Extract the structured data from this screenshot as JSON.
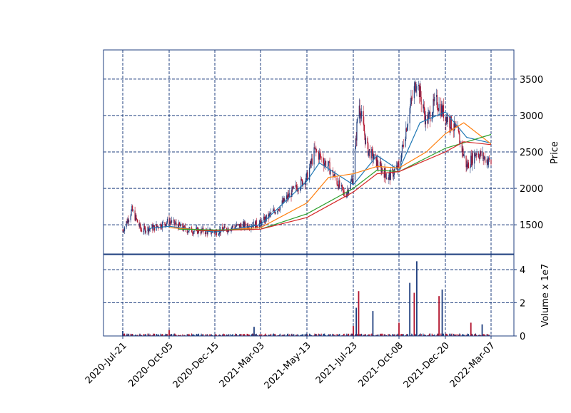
{
  "chart_data": {
    "type": "candlestick",
    "x_dates": [
      "2020-Jul-21",
      "2020-Oct-05",
      "2020-Dec-15",
      "2021-Mar-03",
      "2021-May-13",
      "2021-Jul-23",
      "2021-Oct-08",
      "2021-Dec-20",
      "2022-Mar-07"
    ],
    "x_tick_labels": [
      "2020-Jul-21",
      "2020-Oct-05",
      "2020-Dec-15",
      "2021-Mar-03",
      "2021-May-13",
      "2021-Jul-23",
      "2021-Oct-08",
      "2021-Dec-20",
      "2022-Mar-07"
    ],
    "price_panel": {
      "ylabel": "Price",
      "yticks": [
        1500,
        2000,
        2500,
        3000,
        3500
      ],
      "ylim": [
        1100,
        3900
      ],
      "grid": true,
      "candles_summary": [
        {
          "date": "2020-Jul-21",
          "price": 1420
        },
        {
          "date": "2020-Aug-05",
          "price": 1700
        },
        {
          "date": "2020-Aug-20",
          "price": 1430
        },
        {
          "date": "2020-Sep-10",
          "price": 1460
        },
        {
          "date": "2020-Oct-05",
          "price": 1550
        },
        {
          "date": "2020-Nov-01",
          "price": 1430
        },
        {
          "date": "2020-Dec-15",
          "price": 1400
        },
        {
          "date": "2021-Jan-20",
          "price": 1480
        },
        {
          "date": "2021-Feb-15",
          "price": 1500
        },
        {
          "date": "2021-Mar-03",
          "price": 1520
        },
        {
          "date": "2021-Apr-01",
          "price": 1750
        },
        {
          "date": "2021-Apr-20",
          "price": 1950
        },
        {
          "date": "2021-May-13",
          "price": 2150
        },
        {
          "date": "2021-May-25",
          "price": 2520
        },
        {
          "date": "2021-Jun-15",
          "price": 2300
        },
        {
          "date": "2021-Jul-10",
          "price": 1900
        },
        {
          "date": "2021-Jul-23",
          "price": 2150
        },
        {
          "date": "2021-Aug-01",
          "price": 3200
        },
        {
          "date": "2021-Aug-15",
          "price": 2550
        },
        {
          "date": "2021-Sep-01",
          "price": 2350
        },
        {
          "date": "2021-Sep-20",
          "price": 2150
        },
        {
          "date": "2021-Oct-08",
          "price": 2300
        },
        {
          "date": "2021-Oct-25",
          "price": 3100
        },
        {
          "date": "2021-Nov-05",
          "price": 3500
        },
        {
          "date": "2021-Nov-20",
          "price": 2900
        },
        {
          "date": "2021-Dec-05",
          "price": 3200
        },
        {
          "date": "2021-Dec-20",
          "price": 3000
        },
        {
          "date": "2022-Jan-10",
          "price": 2750
        },
        {
          "date": "2022-Jan-25",
          "price": 2300
        },
        {
          "date": "2022-Feb-10",
          "price": 2500
        },
        {
          "date": "2022-Mar-07",
          "price": 2350
        }
      ],
      "moving_averages": [
        {
          "color": "#1f77b4",
          "points": [
            [
              "2020-Sep-01",
              1450
            ],
            [
              "2020-Oct-05",
              1480
            ],
            [
              "2020-Dec-15",
              1400
            ],
            [
              "2021-Mar-03",
              1500
            ],
            [
              "2021-May-13",
              2100
            ],
            [
              "2021-Jun-01",
              2350
            ],
            [
              "2021-Jul-23",
              2050
            ],
            [
              "2021-Sep-01",
              2450
            ],
            [
              "2021-Oct-08",
              2250
            ],
            [
              "2021-Nov-10",
              2900
            ],
            [
              "2021-Dec-20",
              3050
            ],
            [
              "2022-Jan-25",
              2700
            ],
            [
              "2022-Mar-07",
              2620
            ]
          ]
        },
        {
          "color": "#ff7f0e",
          "points": [
            [
              "2020-Oct-05",
              1460
            ],
            [
              "2020-Dec-15",
              1420
            ],
            [
              "2021-Mar-03",
              1460
            ],
            [
              "2021-May-13",
              1800
            ],
            [
              "2021-Jun-15",
              2150
            ],
            [
              "2021-Jul-23",
              2200
            ],
            [
              "2021-Sep-01",
              2300
            ],
            [
              "2021-Oct-08",
              2280
            ],
            [
              "2021-Nov-20",
              2500
            ],
            [
              "2021-Dec-20",
              2750
            ],
            [
              "2022-Jan-20",
              2900
            ],
            [
              "2022-Mar-07",
              2610
            ]
          ]
        },
        {
          "color": "#2ca02c",
          "points": [
            [
              "2020-Oct-20",
              1440
            ],
            [
              "2020-Dec-15",
              1430
            ],
            [
              "2021-Mar-03",
              1440
            ],
            [
              "2021-May-13",
              1650
            ],
            [
              "2021-Jul-23",
              2000
            ],
            [
              "2021-Sep-01",
              2250
            ],
            [
              "2021-Oct-08",
              2230
            ],
            [
              "2021-Dec-20",
              2550
            ],
            [
              "2022-Mar-07",
              2740
            ]
          ]
        },
        {
          "color": "#d62728",
          "points": [
            [
              "2020-Nov-15",
              1420
            ],
            [
              "2020-Dec-15",
              1420
            ],
            [
              "2021-Mar-03",
              1440
            ],
            [
              "2021-May-13",
              1600
            ],
            [
              "2021-Jul-23",
              1950
            ],
            [
              "2021-Sep-01",
              2200
            ],
            [
              "2021-Oct-08",
              2230
            ],
            [
              "2021-Dec-20",
              2500
            ],
            [
              "2022-Jan-20",
              2640
            ],
            [
              "2022-Mar-07",
              2600
            ]
          ]
        }
      ]
    },
    "volume_panel": {
      "ylabel": "Volume x 1e7",
      "yticks": [
        0,
        2,
        4
      ],
      "ylim": [
        0,
        4.9
      ],
      "grid": true,
      "bars_summary": [
        {
          "date": "2020-Jul-21",
          "value": 0.3
        },
        {
          "date": "2020-Oct-05",
          "value": 0.35
        },
        {
          "date": "2021-Feb-20",
          "value": 0.55
        },
        {
          "date": "2021-Jul-23",
          "value": 0.6
        },
        {
          "date": "2021-Jul-28",
          "value": 1.7
        },
        {
          "date": "2021-Aug-01",
          "value": 2.7
        },
        {
          "date": "2021-Aug-25",
          "value": 1.5
        },
        {
          "date": "2021-Oct-08",
          "value": 0.8
        },
        {
          "date": "2021-Oct-25",
          "value": 3.2
        },
        {
          "date": "2021-Nov-01",
          "value": 2.6
        },
        {
          "date": "2021-Nov-05",
          "value": 4.5
        },
        {
          "date": "2021-Dec-10",
          "value": 2.4
        },
        {
          "date": "2021-Dec-15",
          "value": 2.8
        },
        {
          "date": "2022-Feb-01",
          "value": 0.8
        },
        {
          "date": "2022-Feb-20",
          "value": 0.7
        }
      ]
    }
  }
}
